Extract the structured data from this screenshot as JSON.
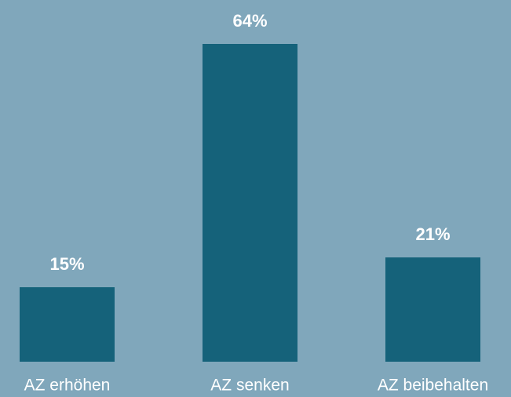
{
  "chart_data": {
    "type": "bar",
    "categories": [
      "AZ erhöhen",
      "AZ senken",
      "AZ beibehalten"
    ],
    "values": [
      15,
      64,
      21
    ],
    "value_labels": [
      "15%",
      "64%",
      "21%"
    ],
    "color": "#15627a"
  }
}
